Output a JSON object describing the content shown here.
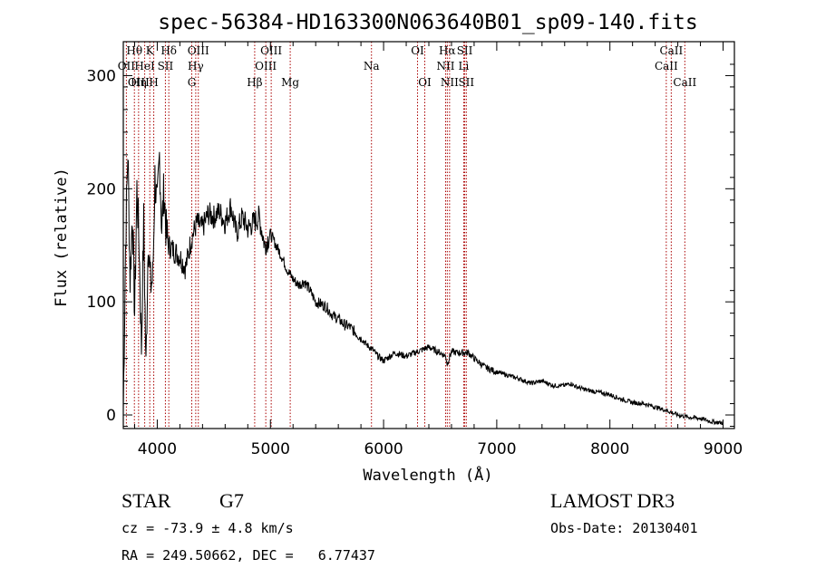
{
  "chart_data": {
    "type": "line",
    "title": "spec-56384-HD163300N063640B01_sp09-140.fits",
    "xlabel": "Wavelength (Å)",
    "ylabel": "Flux (relative)",
    "xlim": [
      3700,
      9100
    ],
    "ylim": [
      -12,
      330
    ],
    "xticks": [
      4000,
      5000,
      6000,
      7000,
      8000,
      9000
    ],
    "yticks": [
      0,
      100,
      200,
      300
    ],
    "series": [
      {
        "name": "flux",
        "x": [
          3700,
          3720,
          3740,
          3760,
          3780,
          3800,
          3820,
          3840,
          3860,
          3880,
          3900,
          3920,
          3940,
          3960,
          3980,
          4000,
          4020,
          4040,
          4060,
          4080,
          4100,
          4150,
          4200,
          4250,
          4300,
          4350,
          4400,
          4450,
          4500,
          4550,
          4600,
          4650,
          4700,
          4750,
          4800,
          4850,
          4900,
          4950,
          5000,
          5050,
          5100,
          5150,
          5200,
          5250,
          5300,
          5350,
          5400,
          5450,
          5500,
          5550,
          5600,
          5650,
          5700,
          5750,
          5800,
          5850,
          5900,
          5950,
          6000,
          6100,
          6200,
          6300,
          6400,
          6500,
          6550,
          6562,
          6600,
          6650,
          6700,
          6750,
          6800,
          6900,
          7000,
          7100,
          7200,
          7300,
          7400,
          7500,
          7600,
          7650,
          7700,
          7800,
          7900,
          8000,
          8100,
          8200,
          8300,
          8400,
          8500,
          8600,
          8700,
          8800,
          8900,
          9000
        ],
        "values": [
          5,
          150,
          235,
          120,
          180,
          90,
          200,
          150,
          60,
          170,
          40,
          160,
          115,
          120,
          210,
          180,
          230,
          165,
          200,
          160,
          150,
          145,
          140,
          130,
          155,
          170,
          165,
          178,
          175,
          180,
          170,
          185,
          160,
          175,
          165,
          170,
          175,
          150,
          160,
          150,
          140,
          128,
          120,
          115,
          118,
          110,
          100,
          98,
          95,
          88,
          85,
          80,
          78,
          73,
          68,
          62,
          58,
          52,
          48,
          55,
          52,
          56,
          60,
          55,
          52,
          45,
          56,
          55,
          55,
          55,
          50,
          42,
          38,
          35,
          32,
          28,
          30,
          26,
          26,
          28,
          25,
          22,
          20,
          18,
          14,
          11,
          10,
          7,
          4,
          0,
          -2,
          -3,
          -6,
          -7
        ]
      }
    ],
    "spectral_lines": [
      {
        "label": "Hθ",
        "wavelength": 3798,
        "row": 1
      },
      {
        "label": "K",
        "wavelength": 3934,
        "row": 1
      },
      {
        "label": "Hδ",
        "wavelength": 4102,
        "row": 1
      },
      {
        "label": "OIII",
        "wavelength": 4363,
        "row": 1
      },
      {
        "label": "OIII",
        "wavelength": 5007,
        "row": 1
      },
      {
        "label": "OI",
        "wavelength": 6300,
        "row": 1
      },
      {
        "label": "Hα",
        "wavelength": 6563,
        "row": 1
      },
      {
        "label": "SII",
        "wavelength": 6717,
        "row": 1
      },
      {
        "label": "CaII",
        "wavelength": 8542,
        "row": 1
      },
      {
        "label": "OII",
        "wavelength": 3727,
        "row": 2
      },
      {
        "label": "HeI",
        "wavelength": 3889,
        "row": 2
      },
      {
        "label": "SII",
        "wavelength": 4072,
        "row": 2
      },
      {
        "label": "Hγ",
        "wavelength": 4340,
        "row": 2
      },
      {
        "label": "OIII",
        "wavelength": 4959,
        "row": 2
      },
      {
        "label": "NII",
        "wavelength": 6548,
        "row": 2
      },
      {
        "label": "Li",
        "wavelength": 6708,
        "row": 2
      },
      {
        "label": "CaII",
        "wavelength": 8498,
        "row": 2
      },
      {
        "label": "OIII",
        "wavelength": 3835,
        "row": 3
      },
      {
        "label": "Hη",
        "wavelength": 3835,
        "row": 3
      },
      {
        "label": "H",
        "wavelength": 3969,
        "row": 3
      },
      {
        "label": "G",
        "wavelength": 4305,
        "row": 3
      },
      {
        "label": "Hβ",
        "wavelength": 4861,
        "row": 3
      },
      {
        "label": "Mg",
        "wavelength": 5175,
        "row": 3
      },
      {
        "label": "Na",
        "wavelength": 5893,
        "row": 2
      },
      {
        "label": "OI",
        "wavelength": 6364,
        "row": 3
      },
      {
        "label": "NII",
        "wavelength": 6583,
        "row": 3
      },
      {
        "label": "SII",
        "wavelength": 6731,
        "row": 3
      },
      {
        "label": "CaII",
        "wavelength": 8662,
        "row": 3
      }
    ],
    "colors": {
      "axes": "#000000",
      "lines": "#aa0000",
      "flux": "#000000"
    }
  },
  "info": {
    "object_class": "STAR",
    "subclass": "G7",
    "survey": "LAMOST DR3",
    "velocity": "cz = -73.9 ± 4.8 km/s",
    "obs_date": "Obs-Date: 20130401",
    "coords": "RA = 249.50662, DEC =   6.77437"
  }
}
